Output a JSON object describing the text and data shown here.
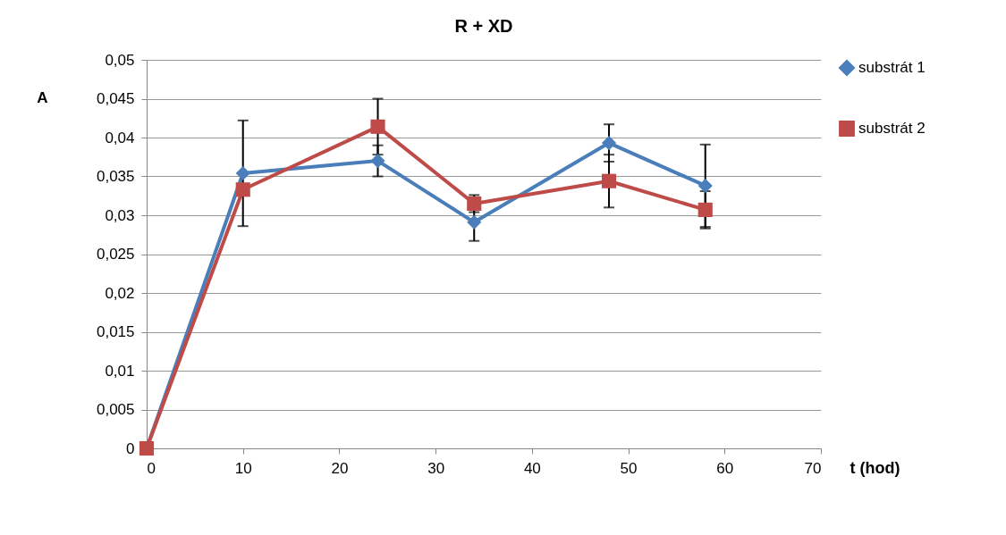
{
  "chart_data": {
    "type": "line",
    "title": "R + XD",
    "xlabel": "t (hod)",
    "ylabel": "A",
    "x": [
      0,
      10,
      24,
      34,
      48,
      58
    ],
    "series": [
      {
        "name": "substrát 1",
        "color": "#4a7ebb",
        "marker": "diamond",
        "values": [
          0,
          0.0354,
          0.037,
          0.0291,
          0.0393,
          0.0338
        ],
        "errors": [
          null,
          0.0068,
          0.002,
          0.0024,
          0.0024,
          0.0053
        ]
      },
      {
        "name": "substrát 2",
        "color": "#be4b48",
        "marker": "square",
        "values": [
          0,
          0.0333,
          0.0414,
          0.0315,
          0.0344,
          0.0307
        ],
        "errors": [
          null,
          null,
          0.0036,
          0.0011,
          0.0034,
          0.0024
        ]
      }
    ],
    "xlim": [
      0,
      70
    ],
    "xticks": [
      0,
      10,
      20,
      30,
      40,
      50,
      60,
      70
    ],
    "ylim": [
      0,
      0.05
    ],
    "yticks": [
      {
        "value": 0,
        "label": "0"
      },
      {
        "value": 0.005,
        "label": "0,005"
      },
      {
        "value": 0.01,
        "label": "0,01"
      },
      {
        "value": 0.015,
        "label": "0,015"
      },
      {
        "value": 0.02,
        "label": "0,02"
      },
      {
        "value": 0.025,
        "label": "0,025"
      },
      {
        "value": 0.03,
        "label": "0,03"
      },
      {
        "value": 0.035,
        "label": "0,035"
      },
      {
        "value": 0.04,
        "label": "0,04"
      },
      {
        "value": 0.045,
        "label": "0,045"
      },
      {
        "value": 0.05,
        "label": "0,05"
      }
    ],
    "grid": "y",
    "legend": "right",
    "line_style": "solid"
  }
}
